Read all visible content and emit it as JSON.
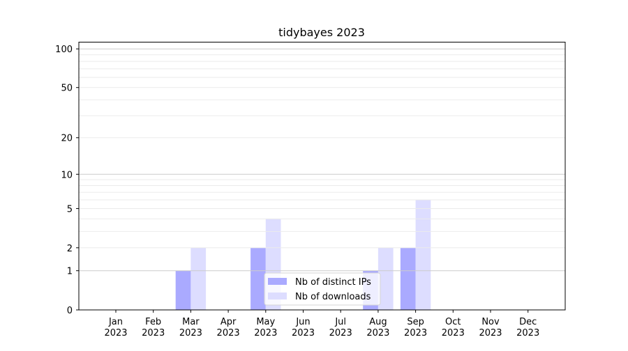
{
  "chart_data": {
    "type": "bar",
    "title": "tidybayes 2023",
    "xlabel": "",
    "ylabel": "",
    "yscale": "log10(1+y)",
    "ylim": [
      0,
      114
    ],
    "yticks": [
      0,
      1,
      2,
      5,
      10,
      20,
      50,
      100
    ],
    "ytick_labels": [
      "0",
      "1",
      "2",
      "5",
      "10",
      "20",
      "50",
      "100"
    ],
    "grid": true,
    "legend_position": "lower-center",
    "categories": [
      "Jan\n2023",
      "Feb\n2023",
      "Mar\n2023",
      "Apr\n2023",
      "May\n2023",
      "Jun\n2023",
      "Jul\n2023",
      "Aug\n2023",
      "Sep\n2023",
      "Oct\n2023",
      "Nov\n2023",
      "Dec\n2023"
    ],
    "category_months": [
      "Jan",
      "Feb",
      "Mar",
      "Apr",
      "May",
      "Jun",
      "Jul",
      "Aug",
      "Sep",
      "Oct",
      "Nov",
      "Dec"
    ],
    "category_year": "2023",
    "series": [
      {
        "name": "Nb of distinct IPs",
        "color": "#aaaaff",
        "values": [
          0,
          0,
          1,
          0,
          2,
          0,
          0,
          1,
          2,
          0,
          0,
          0
        ]
      },
      {
        "name": "Nb of downloads",
        "color": "#ddddff",
        "values": [
          0,
          0,
          2,
          0,
          4,
          0,
          0,
          2,
          6,
          0,
          0,
          0
        ]
      }
    ]
  }
}
